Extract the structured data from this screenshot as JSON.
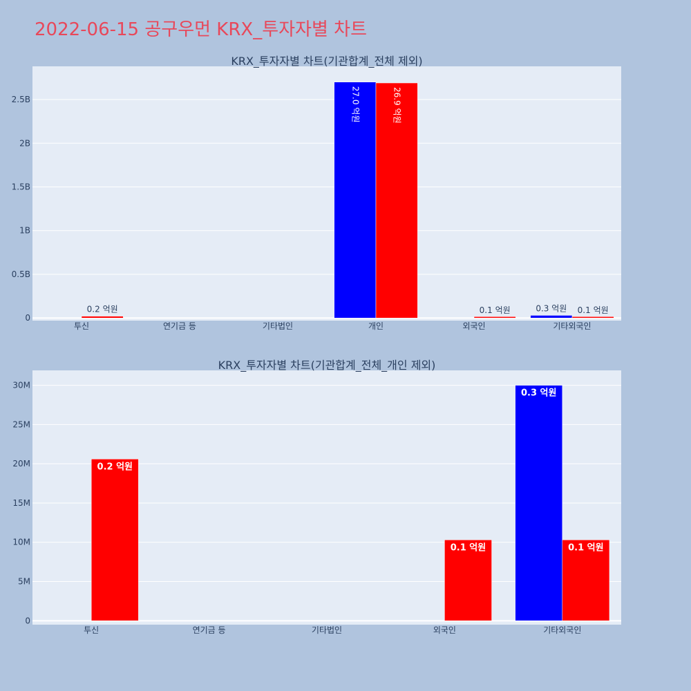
{
  "page": {
    "title": "2022-06-15 공구우먼 KRX_투자자별 차트"
  },
  "colors": {
    "background": "#b0c4de",
    "plot_bg": "#e5ecf6",
    "title": "#e8485a",
    "buy": "#0000ff",
    "sell": "#ff0000",
    "text": "#2a3f5f"
  },
  "chart_data": [
    {
      "type": "bar",
      "title": "KRX_투자자별 차트(기관합계_전체 제외)",
      "categories": [
        "투신",
        "연기금 등",
        "기타법인",
        "개인",
        "외국인",
        "기타외국인"
      ],
      "ylim": [
        -30000000,
        2880000000
      ],
      "yticks": [
        0,
        500000000,
        1000000000,
        1500000000,
        2000000000,
        2500000000
      ],
      "ytick_labels": [
        "0",
        "0.5B",
        "1B",
        "1.5B",
        "2B",
        "2.5B"
      ],
      "label_position": "outside-small-inside-rotated",
      "series": [
        {
          "color": "#0000ff",
          "values": [
            0,
            0,
            0,
            2700000000,
            0,
            30000000
          ],
          "labels": [
            "",
            "",
            "",
            "27.0 억원",
            "",
            "0.3 억원"
          ]
        },
        {
          "color": "#ff0000",
          "values": [
            20600000,
            0,
            0,
            2690000000,
            10300000,
            10300000
          ],
          "labels": [
            "0.2 억원",
            "",
            "",
            "26.9 억원",
            "0.1 억원",
            "0.1 억원"
          ]
        }
      ],
      "grid": true
    },
    {
      "type": "bar",
      "title": "KRX_투자자별 차트(기관합계_전체_개인 제외)",
      "categories": [
        "투신",
        "연기금 등",
        "기타법인",
        "외국인",
        "기타외국인"
      ],
      "ylim": [
        -500000,
        31900000
      ],
      "yticks": [
        0,
        5000000,
        10000000,
        15000000,
        20000000,
        25000000,
        30000000
      ],
      "ytick_labels": [
        "0",
        "5M",
        "10M",
        "15M",
        "20M",
        "25M",
        "30M"
      ],
      "label_position": "inside-top",
      "series": [
        {
          "color": "#0000ff",
          "values": [
            0,
            0,
            0,
            0,
            30000000
          ],
          "labels": [
            "",
            "",
            "",
            "",
            "0.3 억원"
          ]
        },
        {
          "color": "#ff0000",
          "values": [
            20600000,
            0,
            0,
            10300000,
            10300000
          ],
          "labels": [
            "0.2 억원",
            "",
            "",
            "0.1 억원",
            "0.1 억원"
          ]
        }
      ],
      "grid": true
    }
  ]
}
